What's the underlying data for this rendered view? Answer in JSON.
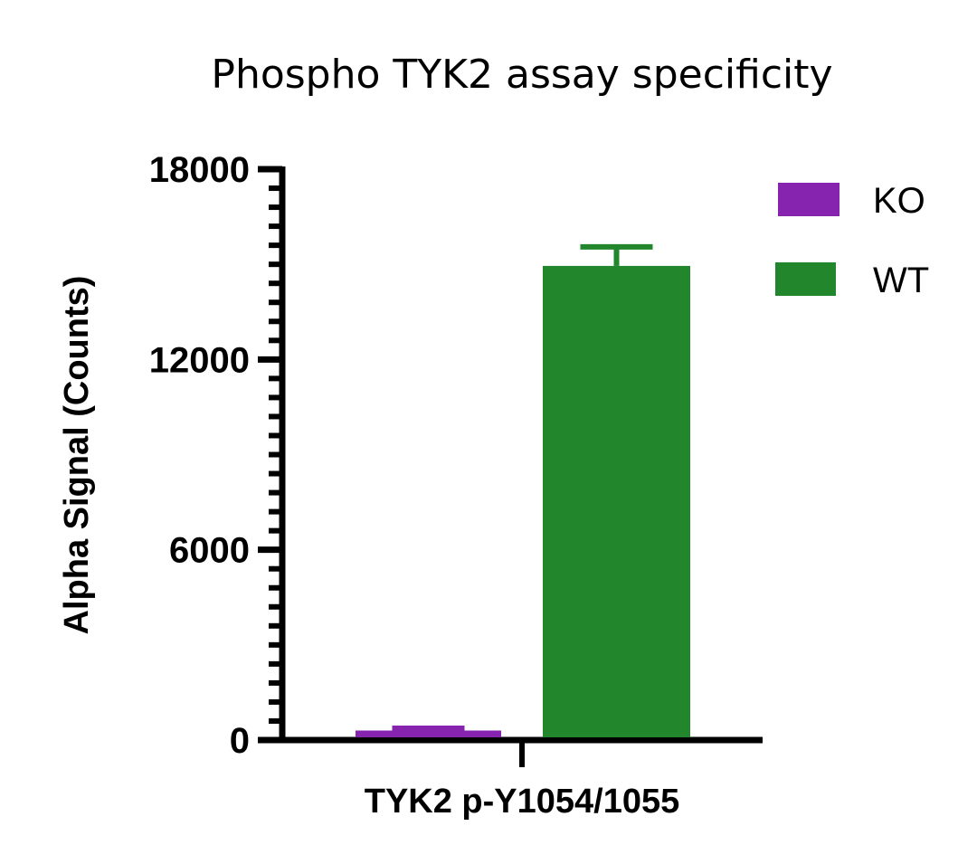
{
  "chart_data": {
    "type": "bar",
    "title": "Phospho TYK2 assay specificity",
    "xlabel": "TYK2 p-Y1054/1055",
    "ylabel": "Alpha Signal (Counts)",
    "categories": [
      "TYK2 p-Y1054/1055"
    ],
    "series": [
      {
        "name": "KO",
        "color": "#8624B0",
        "values": [
          300
        ],
        "error": [
          70
        ]
      },
      {
        "name": "WT",
        "color": "#22862C",
        "values": [
          14950
        ],
        "error": [
          600
        ]
      }
    ],
    "ylim": [
      0,
      18000
    ],
    "yticks": [
      0,
      6000,
      12000,
      18000
    ],
    "ytick_labels": [
      "0",
      "6000",
      "12000",
      "18000"
    ],
    "minor_ticks_per_major": 9,
    "grid": false,
    "legend_position": "right"
  }
}
